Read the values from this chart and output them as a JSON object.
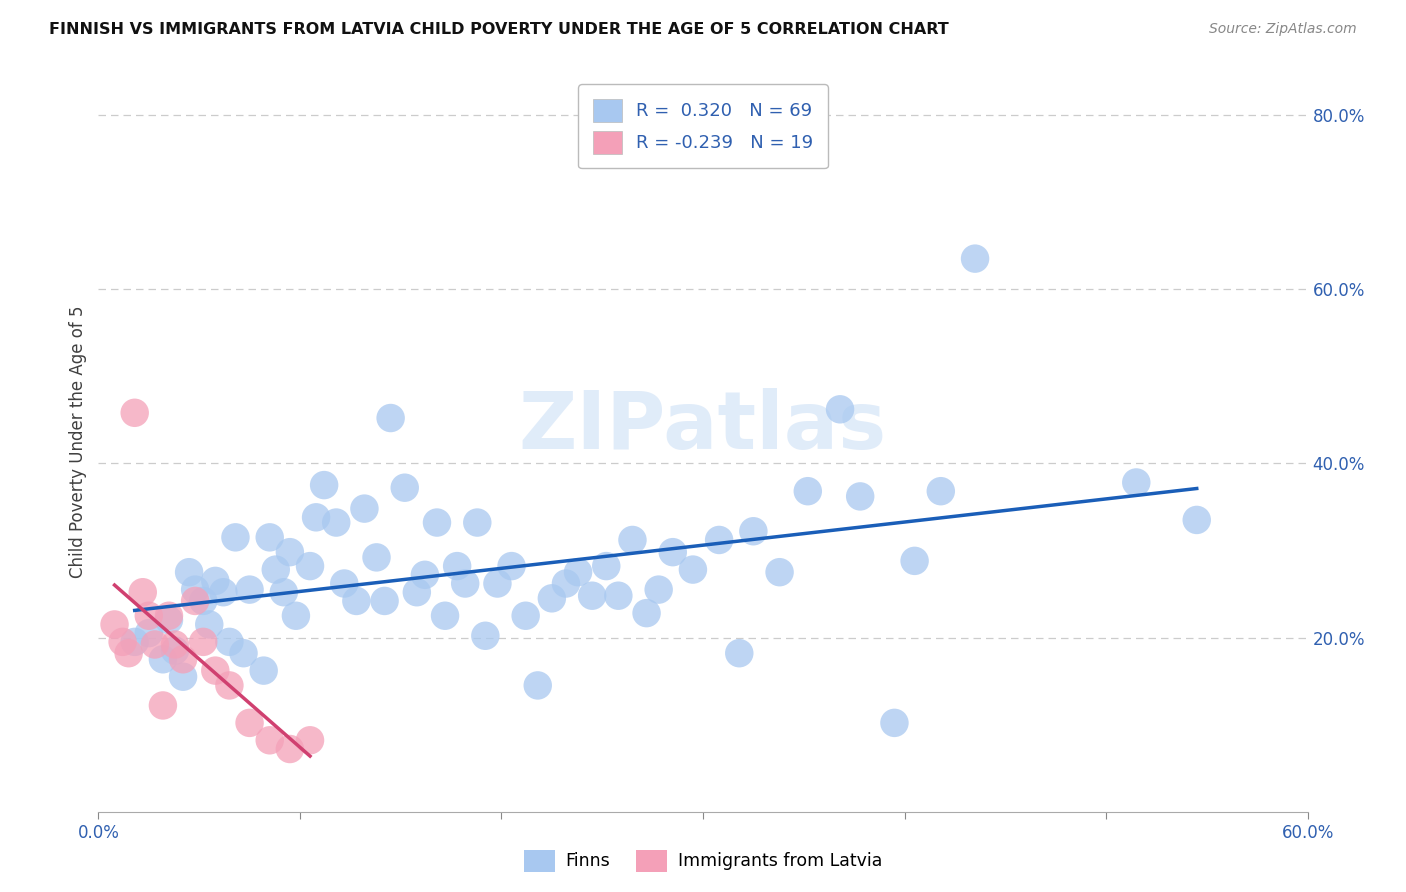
{
  "title": "FINNISH VS IMMIGRANTS FROM LATVIA CHILD POVERTY UNDER THE AGE OF 5 CORRELATION CHART",
  "source": "Source: ZipAtlas.com",
  "ylabel": "Child Poverty Under the Age of 5",
  "xlim": [
    0.0,
    0.6
  ],
  "ylim": [
    0.0,
    0.85
  ],
  "xticks": [
    0.0,
    0.1,
    0.2,
    0.3,
    0.4,
    0.5,
    0.6
  ],
  "xtick_labels": [
    "0.0%",
    "",
    "",
    "",
    "",
    "",
    "60.0%"
  ],
  "yticks_right": [
    0.0,
    0.2,
    0.4,
    0.6,
    0.8
  ],
  "ytick_labels_right": [
    "",
    "20.0%",
    "40.0%",
    "60.0%",
    "80.0%"
  ],
  "finns_R": 0.32,
  "finns_N": 69,
  "latvia_R": -0.239,
  "latvia_N": 19,
  "finns_color": "#a8c8f0",
  "latvia_color": "#f4a0b8",
  "finns_line_color": "#1a5eb8",
  "latvia_line_color": "#d04070",
  "watermark": "ZIPatlas",
  "finns_x": [
    0.018,
    0.025,
    0.032,
    0.035,
    0.038,
    0.042,
    0.045,
    0.048,
    0.052,
    0.055,
    0.058,
    0.062,
    0.065,
    0.068,
    0.072,
    0.075,
    0.082,
    0.085,
    0.088,
    0.092,
    0.095,
    0.098,
    0.105,
    0.108,
    0.112,
    0.118,
    0.122,
    0.128,
    0.132,
    0.138,
    0.142,
    0.145,
    0.152,
    0.158,
    0.162,
    0.168,
    0.172,
    0.178,
    0.182,
    0.188,
    0.192,
    0.198,
    0.205,
    0.212,
    0.218,
    0.225,
    0.232,
    0.238,
    0.245,
    0.252,
    0.258,
    0.265,
    0.272,
    0.278,
    0.285,
    0.295,
    0.308,
    0.318,
    0.325,
    0.338,
    0.352,
    0.368,
    0.378,
    0.395,
    0.405,
    0.418,
    0.435,
    0.515,
    0.545
  ],
  "finns_y": [
    0.195,
    0.205,
    0.175,
    0.22,
    0.185,
    0.155,
    0.275,
    0.255,
    0.242,
    0.215,
    0.265,
    0.252,
    0.195,
    0.315,
    0.182,
    0.255,
    0.162,
    0.315,
    0.278,
    0.252,
    0.298,
    0.225,
    0.282,
    0.338,
    0.375,
    0.332,
    0.262,
    0.242,
    0.348,
    0.292,
    0.242,
    0.452,
    0.372,
    0.252,
    0.272,
    0.332,
    0.225,
    0.282,
    0.262,
    0.332,
    0.202,
    0.262,
    0.282,
    0.225,
    0.145,
    0.245,
    0.262,
    0.275,
    0.248,
    0.282,
    0.248,
    0.312,
    0.228,
    0.255,
    0.298,
    0.278,
    0.312,
    0.182,
    0.322,
    0.275,
    0.368,
    0.462,
    0.362,
    0.102,
    0.288,
    0.368,
    0.635,
    0.378,
    0.335
  ],
  "latvia_x": [
    0.008,
    0.012,
    0.015,
    0.018,
    0.022,
    0.025,
    0.028,
    0.032,
    0.035,
    0.038,
    0.042,
    0.048,
    0.052,
    0.058,
    0.065,
    0.075,
    0.085,
    0.095,
    0.105
  ],
  "latvia_y": [
    0.215,
    0.195,
    0.182,
    0.458,
    0.252,
    0.225,
    0.192,
    0.122,
    0.225,
    0.192,
    0.175,
    0.242,
    0.195,
    0.162,
    0.145,
    0.102,
    0.082,
    0.072,
    0.082
  ]
}
